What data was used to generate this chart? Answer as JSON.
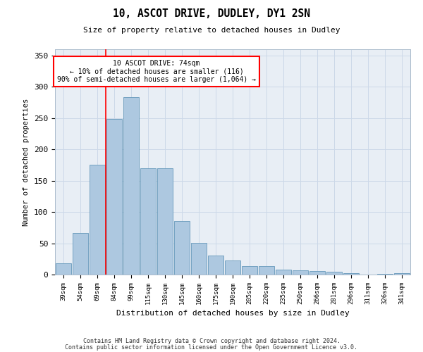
{
  "title1": "10, ASCOT DRIVE, DUDLEY, DY1 2SN",
  "title2": "Size of property relative to detached houses in Dudley",
  "xlabel": "Distribution of detached houses by size in Dudley",
  "ylabel": "Number of detached properties",
  "categories": [
    "39sqm",
    "54sqm",
    "69sqm",
    "84sqm",
    "99sqm",
    "115sqm",
    "130sqm",
    "145sqm",
    "160sqm",
    "175sqm",
    "190sqm",
    "205sqm",
    "220sqm",
    "235sqm",
    "250sqm",
    "266sqm",
    "281sqm",
    "296sqm",
    "311sqm",
    "326sqm",
    "341sqm"
  ],
  "values": [
    18,
    66,
    175,
    249,
    283,
    170,
    170,
    85,
    51,
    30,
    22,
    14,
    14,
    8,
    7,
    6,
    5,
    2,
    0,
    1,
    2
  ],
  "bar_color": "#adc8e0",
  "bar_edge_color": "#6699bb",
  "grid_color": "#ccd8e8",
  "background_color": "#e8eef5",
  "annotation_text": "10 ASCOT DRIVE: 74sqm\n← 10% of detached houses are smaller (116)\n90% of semi-detached houses are larger (1,064) →",
  "ylim": [
    0,
    360
  ],
  "yticks": [
    0,
    50,
    100,
    150,
    200,
    250,
    300,
    350
  ],
  "redline_index": 2.5,
  "footer1": "Contains HM Land Registry data © Crown copyright and database right 2024.",
  "footer2": "Contains public sector information licensed under the Open Government Licence v3.0."
}
